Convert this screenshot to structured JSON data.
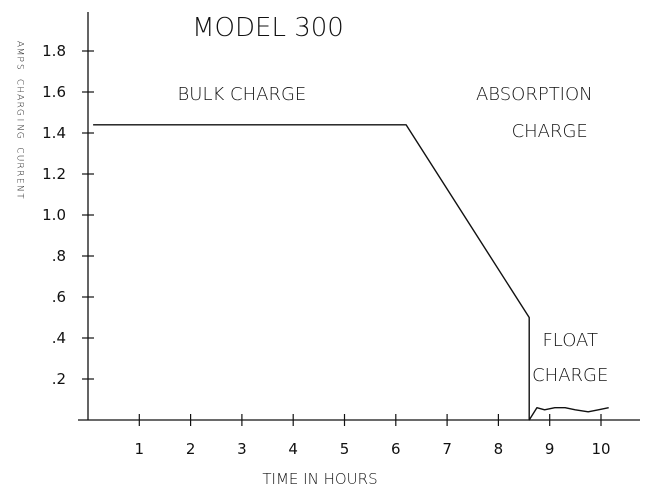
{
  "chart_data": {
    "type": "line",
    "title": "MODEL 300",
    "xlabel": "TIME IN HOURS",
    "ylabel": "AMPS CHARGING CURRENT",
    "xlim": [
      0,
      10.8
    ],
    "ylim": [
      0,
      1.9
    ],
    "x_ticks": [
      1,
      2,
      3,
      4,
      5,
      6,
      7,
      8,
      9,
      10
    ],
    "x_tick_labels": [
      "1",
      "2",
      "3",
      "4",
      "5",
      "6",
      "7",
      "8",
      "9",
      "10"
    ],
    "y_ticks": [
      0.2,
      0.4,
      0.6,
      0.8,
      1.0,
      1.2,
      1.4,
      1.6,
      1.8
    ],
    "y_tick_labels": [
      ".2",
      ".4",
      ".6",
      ".8",
      "1.0",
      "1.2",
      "1.4",
      "1.6",
      "1.8"
    ],
    "grid": false,
    "series": [
      {
        "x": [
          0.1,
          6.2,
          8.6,
          8.6,
          8.75,
          8.9,
          9.1,
          9.3,
          9.5,
          9.75,
          9.95,
          10.15
        ],
        "y": [
          1.44,
          1.44,
          0.5,
          0.0,
          0.06,
          0.05,
          0.06,
          0.06,
          0.05,
          0.04,
          0.05,
          0.06
        ]
      }
    ],
    "annotations": [
      {
        "text": "BULK CHARGE",
        "x": 3.0,
        "y": 1.56
      },
      {
        "text": "ABSORPTION",
        "x": 8.7,
        "y": 1.56
      },
      {
        "text": "CHARGE",
        "x": 9.0,
        "y": 1.38
      },
      {
        "text": "FLOAT",
        "x": 9.4,
        "y": 0.36
      },
      {
        "text": "CHARGE",
        "x": 9.4,
        "y": 0.19
      }
    ],
    "colors": {
      "line": "#111111",
      "axis": "#111111",
      "text": "#111111"
    }
  }
}
